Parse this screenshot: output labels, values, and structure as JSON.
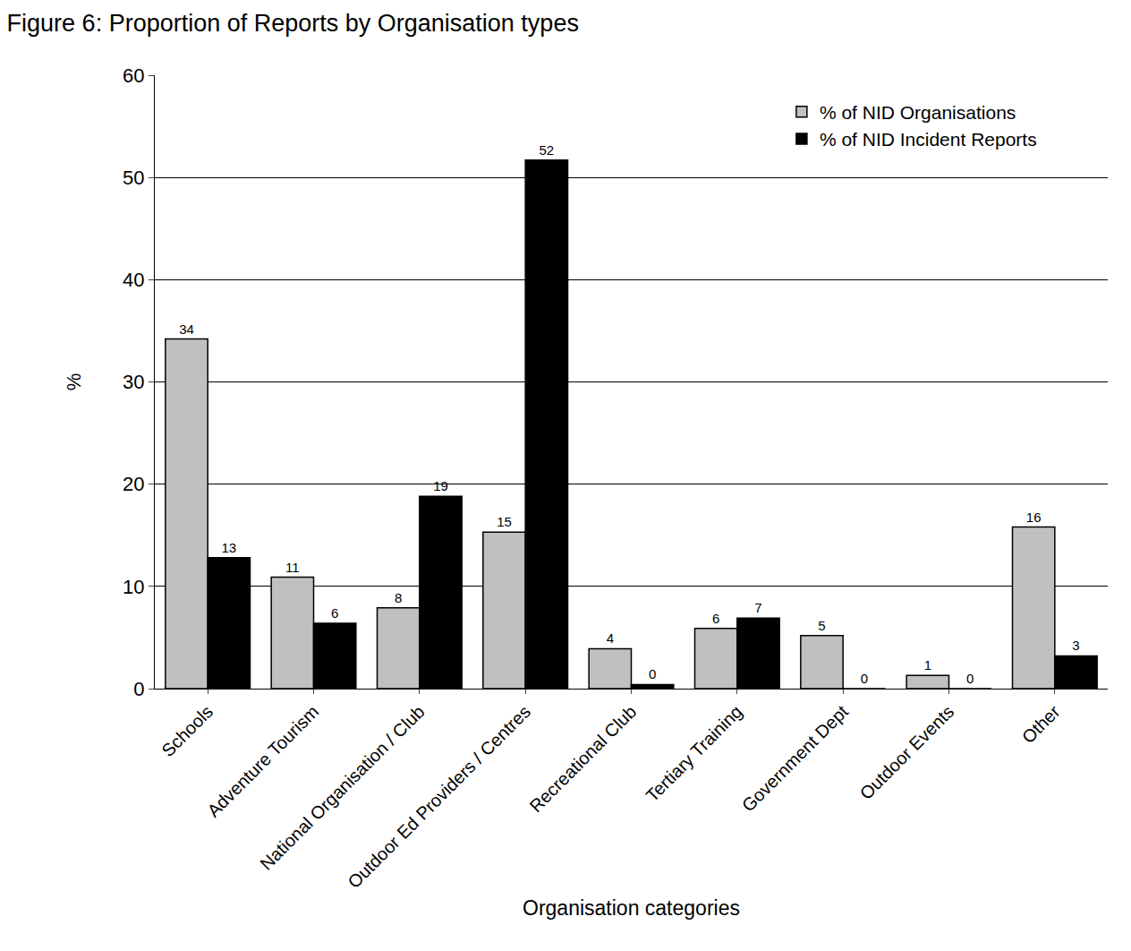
{
  "chart_data": {
    "type": "bar",
    "title": "Figure 6: Proportion of Reports by Organisation types",
    "x_label": "Organisation categories",
    "y_label": "%",
    "categories": [
      "Schools",
      "Adventure Tourism",
      "National Organisation / Club",
      "Outdoor Ed Providers / Centres",
      "Recreational Club",
      "Tertiary Training",
      "Government Dept",
      "Outdoor Events",
      "Other"
    ],
    "series": [
      {
        "name": "% of NID Organisations",
        "color": "#c0c0c0",
        "values": [
          34.2,
          10.9,
          7.9,
          15.3,
          3.9,
          5.9,
          5.2,
          1.3,
          15.8
        ],
        "value_labels": [
          "34",
          "11",
          "8",
          "15",
          "4",
          "6",
          "5",
          "1",
          "16"
        ]
      },
      {
        "name": "% of NID Incident Reports",
        "color": "#000000",
        "values": [
          12.8,
          6.4,
          18.8,
          51.7,
          0.4,
          6.9,
          0,
          0,
          3.2
        ],
        "value_labels": [
          "13",
          "6",
          "19",
          "52",
          "0",
          "7",
          "0",
          "0",
          "3"
        ]
      }
    ],
    "ylim": [
      0,
      60
    ],
    "yticks": [
      0,
      10,
      20,
      30,
      40,
      50,
      60
    ],
    "grid": true,
    "legend": "upper right",
    "data_labels": true
  }
}
